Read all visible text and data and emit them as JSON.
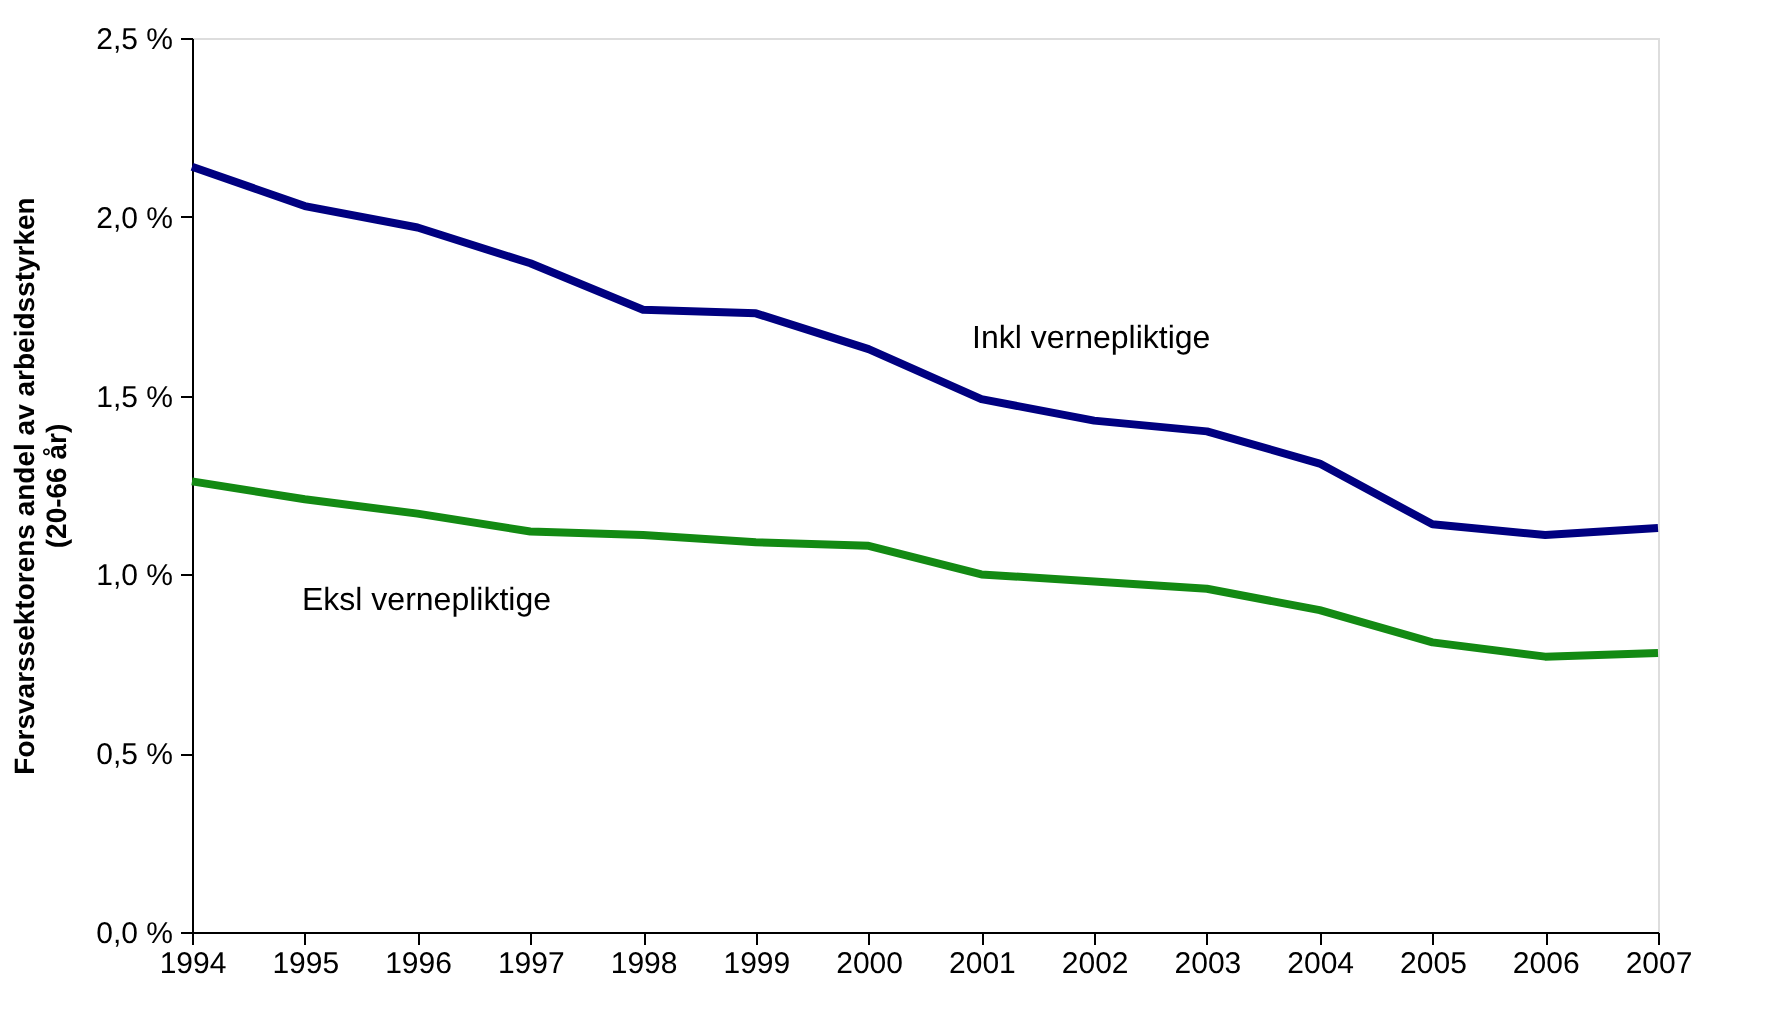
{
  "chart_data": {
    "type": "line",
    "ylabel": "Forsvarssektorens andel  av arbeidsstyrken\n(20-66 år)",
    "x": [
      1994,
      1995,
      1996,
      1997,
      1998,
      1999,
      2000,
      2001,
      2002,
      2003,
      2004,
      2005,
      2006,
      2007
    ],
    "series": [
      {
        "name": "Inkl vernepliktige",
        "color": "#000080",
        "values": [
          2.14,
          2.03,
          1.97,
          1.87,
          1.74,
          1.73,
          1.63,
          1.49,
          1.43,
          1.4,
          1.31,
          1.14,
          1.11,
          1.13
        ]
      },
      {
        "name": "Eksl vernepliktige",
        "color": "#138a13",
        "values": [
          1.26,
          1.21,
          1.17,
          1.12,
          1.11,
          1.09,
          1.08,
          1.0,
          0.98,
          0.96,
          0.9,
          0.81,
          0.77,
          0.78
        ]
      }
    ],
    "xlim": [
      1994,
      2007
    ],
    "xticks": [
      1994,
      1995,
      1996,
      1997,
      1998,
      1999,
      2000,
      2001,
      2002,
      2003,
      2004,
      2005,
      2006,
      2007
    ],
    "ylim": [
      0,
      2.5
    ],
    "yticks": [
      {
        "value": 0,
        "label": "0,0 %"
      },
      {
        "value": 0.5,
        "label": "0,5 %"
      },
      {
        "value": 1.0,
        "label": "1,0 %"
      },
      {
        "value": 1.5,
        "label": "1,5 %"
      },
      {
        "value": 2.0,
        "label": "2,0 %"
      },
      {
        "value": 2.5,
        "label": "2,5 %"
      }
    ],
    "grid": false,
    "legend": false,
    "marker": "none",
    "line_style": "solid"
  }
}
